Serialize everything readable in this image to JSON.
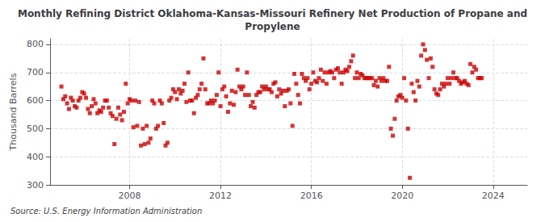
{
  "chart_data": {
    "type": "scatter",
    "title": "Monthly Refining District Oklahoma-Kansas-Missouri Refinery Net Production of Propane and\nPropylene",
    "ylabel": "Thousand Barrels",
    "annotations": [
      "Source: U.S. Energy Information Administration"
    ],
    "xlim": [
      2004.5,
      2025.5
    ],
    "xticks": [
      2008,
      2012,
      2016,
      2020,
      2024
    ],
    "ylim": [
      300,
      820
    ],
    "yticks": [
      300,
      400,
      500,
      600,
      700,
      800
    ],
    "grid": true,
    "color": "#cc0000",
    "marker": "square",
    "x": [
      2005.0,
      2005.083,
      2005.167,
      2005.25,
      2005.333,
      2005.417,
      2005.5,
      2005.583,
      2005.667,
      2005.75,
      2005.833,
      2005.917,
      2006.0,
      2006.083,
      2006.167,
      2006.25,
      2006.333,
      2006.417,
      2006.5,
      2006.583,
      2006.667,
      2006.75,
      2006.833,
      2006.917,
      2007.0,
      2007.083,
      2007.167,
      2007.25,
      2007.333,
      2007.417,
      2007.5,
      2007.583,
      2007.667,
      2007.75,
      2007.833,
      2007.917,
      2008.0,
      2008.083,
      2008.167,
      2008.25,
      2008.333,
      2008.417,
      2008.5,
      2008.583,
      2008.667,
      2008.75,
      2008.833,
      2008.917,
      2009.0,
      2009.083,
      2009.167,
      2009.25,
      2009.333,
      2009.417,
      2009.5,
      2009.583,
      2009.667,
      2009.75,
      2009.833,
      2009.917,
      2010.0,
      2010.083,
      2010.167,
      2010.25,
      2010.333,
      2010.417,
      2010.5,
      2010.583,
      2010.667,
      2010.75,
      2010.833,
      2010.917,
      2011.0,
      2011.083,
      2011.167,
      2011.25,
      2011.333,
      2011.417,
      2011.5,
      2011.583,
      2011.667,
      2011.75,
      2011.833,
      2011.917,
      2012.0,
      2012.083,
      2012.167,
      2012.25,
      2012.333,
      2012.417,
      2012.5,
      2012.583,
      2012.667,
      2012.75,
      2012.833,
      2012.917,
      2013.0,
      2013.083,
      2013.167,
      2013.25,
      2013.333,
      2013.417,
      2013.5,
      2013.583,
      2013.667,
      2013.75,
      2013.833,
      2013.917,
      2014.0,
      2014.083,
      2014.167,
      2014.25,
      2014.333,
      2014.417,
      2014.5,
      2014.583,
      2014.667,
      2014.75,
      2014.833,
      2014.917,
      2015.0,
      2015.083,
      2015.167,
      2015.25,
      2015.333,
      2015.417,
      2015.5,
      2015.583,
      2015.667,
      2015.75,
      2015.833,
      2015.917,
      2016.0,
      2016.083,
      2016.167,
      2016.25,
      2016.333,
      2016.417,
      2016.5,
      2016.583,
      2016.667,
      2016.75,
      2016.833,
      2016.917,
      2017.0,
      2017.083,
      2017.167,
      2017.25,
      2017.333,
      2017.417,
      2017.5,
      2017.583,
      2017.667,
      2017.75,
      2017.833,
      2017.917,
      2018.0,
      2018.083,
      2018.167,
      2018.25,
      2018.333,
      2018.417,
      2018.5,
      2018.583,
      2018.667,
      2018.75,
      2018.833,
      2018.917,
      2019.0,
      2019.083,
      2019.167,
      2019.25,
      2019.333,
      2019.417,
      2019.5,
      2019.583,
      2019.667,
      2019.75,
      2019.833,
      2019.917,
      2020.0,
      2020.083,
      2020.167,
      2020.25,
      2020.333,
      2020.417,
      2020.5,
      2020.583,
      2020.667,
      2020.75,
      2020.833,
      2020.917,
      2021.0,
      2021.083,
      2021.167,
      2021.25,
      2021.333,
      2021.417,
      2021.5,
      2021.583,
      2021.667,
      2021.75,
      2021.833,
      2021.917,
      2022.0,
      2022.083,
      2022.167,
      2022.25,
      2022.333,
      2022.417,
      2022.5,
      2022.583,
      2022.667,
      2022.75,
      2022.833,
      2022.917,
      2023.0,
      2023.083,
      2023.167,
      2023.25,
      2023.333,
      2023.417,
      2023.5
    ],
    "values": [
      650,
      605,
      615,
      590,
      570,
      610,
      600,
      580,
      575,
      600,
      610,
      630,
      625,
      610,
      570,
      555,
      580,
      605,
      590,
      555,
      565,
      560,
      575,
      600,
      600,
      575,
      555,
      545,
      445,
      535,
      575,
      550,
      530,
      560,
      660,
      590,
      605,
      600,
      505,
      600,
      510,
      595,
      440,
      500,
      445,
      510,
      450,
      465,
      600,
      590,
      500,
      510,
      600,
      590,
      520,
      440,
      450,
      600,
      610,
      640,
      630,
      605,
      640,
      625,
      635,
      660,
      595,
      700,
      600,
      600,
      555,
      610,
      620,
      640,
      660,
      750,
      640,
      590,
      590,
      600,
      590,
      600,
      620,
      700,
      580,
      640,
      650,
      615,
      560,
      590,
      635,
      585,
      630,
      710,
      650,
      640,
      650,
      620,
      700,
      620,
      580,
      595,
      575,
      620,
      630,
      630,
      650,
      640,
      650,
      640,
      640,
      630,
      660,
      665,
      615,
      640,
      625,
      635,
      580,
      635,
      640,
      590,
      510,
      695,
      660,
      620,
      590,
      695,
      680,
      670,
      680,
      640,
      660,
      700,
      670,
      665,
      680,
      710,
      670,
      700,
      660,
      700,
      705,
      700,
      680,
      710,
      715,
      700,
      660,
      700,
      710,
      705,
      720,
      740,
      760,
      680,
      700,
      680,
      695,
      690,
      680,
      680,
      680,
      680,
      680,
      655,
      670,
      650,
      680,
      670,
      680,
      670,
      670,
      720,
      500,
      475,
      535,
      600,
      615,
      620,
      610,
      680,
      600,
      500,
      325,
      660,
      630,
      600,
      670,
      650,
      760,
      800,
      780,
      745,
      680,
      750,
      720,
      640,
      625,
      620,
      640,
      660,
      650,
      660,
      680,
      660,
      680,
      700,
      680,
      680,
      670,
      660,
      665,
      670,
      660,
      655,
      730,
      700,
      720,
      710,
      680,
      680,
      680
    ]
  }
}
